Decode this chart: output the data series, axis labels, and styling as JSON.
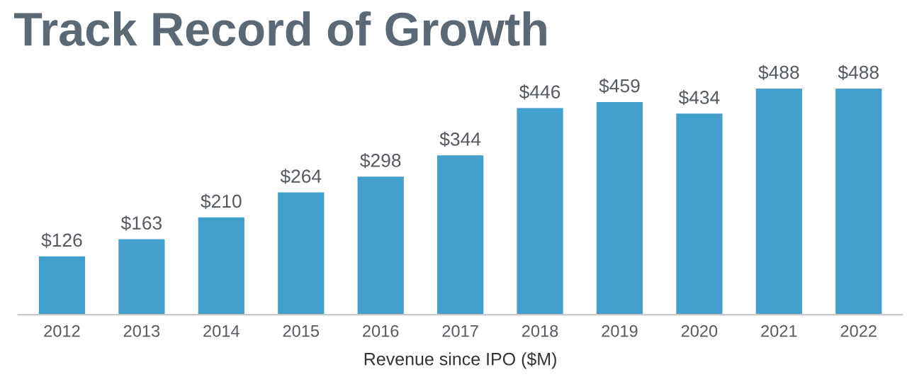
{
  "chart_data": {
    "type": "bar",
    "title": "Track Record of Growth",
    "xlabel": "Revenue since IPO ($M)",
    "categories": [
      "2012",
      "2013",
      "2014",
      "2015",
      "2016",
      "2017",
      "2018",
      "2019",
      "2020",
      "2021",
      "2022"
    ],
    "values": [
      126,
      163,
      210,
      264,
      298,
      344,
      446,
      459,
      434,
      488,
      488
    ],
    "value_labels": [
      "$126",
      "$163",
      "$210",
      "$264",
      "$298",
      "$344",
      "$446",
      "$459",
      "$434",
      "$488",
      "$488"
    ],
    "color": "#439fcc",
    "grid": false,
    "tick_labels": "x"
  }
}
